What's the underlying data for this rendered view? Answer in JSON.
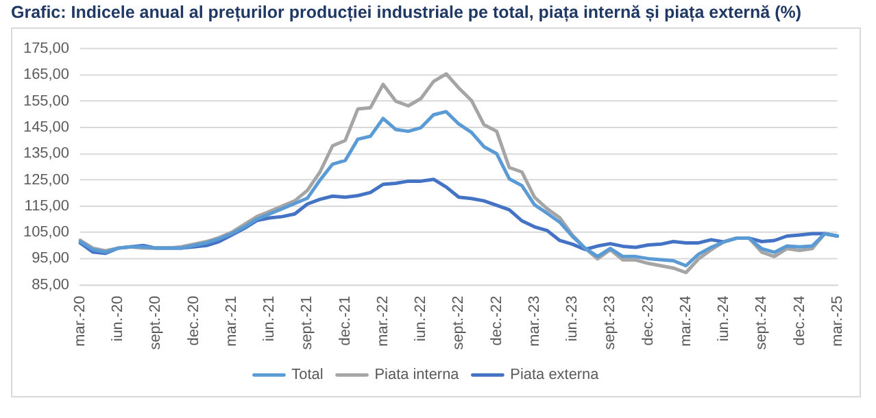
{
  "chart_data": {
    "type": "line",
    "title": "Grafic: Indicele anual al prețurilor producției industriale pe total, piața internă și piața externă (%)",
    "categories": [
      "mar.-20",
      null,
      null,
      "iun.-20",
      null,
      null,
      "sept.-20",
      null,
      null,
      "dec.-20",
      null,
      null,
      "mar.-21",
      null,
      null,
      "iun.-21",
      null,
      null,
      "sept.-21",
      null,
      null,
      "dec.-21",
      null,
      null,
      "mar.-22",
      null,
      null,
      "iun.-22",
      null,
      null,
      "sept.-22",
      null,
      null,
      "dec.-22",
      null,
      null,
      "mar.-23",
      null,
      null,
      "iun.-23",
      null,
      null,
      "sept.-23",
      null,
      null,
      "dec.-23",
      null,
      null,
      "mar.-24",
      null,
      null,
      "iun.-24",
      null,
      null,
      "sept.-24",
      null,
      null,
      "dec.-24",
      null,
      null,
      "mar.-25"
    ],
    "series": [
      {
        "name": "Total",
        "color": "#5b9bd5",
        "values": [
          101.5,
          98.5,
          97.5,
          99,
          99.5,
          99.5,
          99,
          99,
          99,
          100,
          101,
          102.5,
          104.5,
          107,
          110,
          112,
          114,
          116,
          118,
          124.9,
          131,
          132.4,
          140.5,
          141.6,
          148.4,
          144.2,
          143.5,
          144.9,
          149.8,
          151,
          146.3,
          143.1,
          137.6,
          135,
          125.4,
          122.8,
          115.5,
          112.3,
          108.9,
          103.5,
          99,
          95.8,
          98.9,
          95.8,
          95.8,
          95,
          94.6,
          94.2,
          92.3,
          96.7,
          99.3,
          101.4,
          102.8,
          102.8,
          98.8,
          97.4,
          99.8,
          99.5,
          99.8,
          104.5,
          103.6
        ]
      },
      {
        "name": "Piata interna",
        "color": "#a5a5a5",
        "values": [
          102,
          99,
          98,
          99,
          99.5,
          99,
          99,
          99,
          99.5,
          100.5,
          101.5,
          103,
          105,
          108,
          111,
          113,
          115,
          117,
          121,
          128,
          138,
          140,
          152,
          152.5,
          161.4,
          155,
          153.2,
          156,
          162.5,
          165.4,
          160,
          155.3,
          146,
          143.5,
          129.7,
          128,
          118.4,
          114,
          110.6,
          104,
          99,
          94.9,
          98.4,
          94.5,
          94.5,
          93.2,
          92.3,
          91.4,
          89.7,
          94.9,
          98.4,
          101.4,
          102.8,
          102.8,
          97.5,
          95.8,
          98.8,
          98.1,
          98.8,
          104.5,
          103.6
        ]
      },
      {
        "name": "Piata externa",
        "color": "#4472c4",
        "values": [
          101,
          97.5,
          97,
          99,
          99.5,
          100,
          99,
          99,
          99,
          99.5,
          100,
          101.5,
          104,
          106.5,
          109.5,
          110.5,
          111,
          112,
          115.8,
          117.6,
          118.8,
          118.4,
          119,
          120.2,
          123.3,
          123.7,
          124.5,
          124.5,
          125.2,
          122.3,
          118.4,
          117.9,
          117,
          115.3,
          113.6,
          109.4,
          107.1,
          105.7,
          101.9,
          100.5,
          98.5,
          99.8,
          100.7,
          99.7,
          99.3,
          100.2,
          100.5,
          101.5,
          101,
          101,
          102.2,
          101.4,
          102.8,
          102.8,
          101.5,
          101.9,
          103.6,
          104,
          104.5,
          104.5,
          103.6
        ]
      }
    ],
    "ylim": [
      85,
      175
    ],
    "yticks": [
      {
        "value": 85,
        "label": "85,00"
      },
      {
        "value": 95,
        "label": "95,00"
      },
      {
        "value": 105,
        "label": "105,00"
      },
      {
        "value": 115,
        "label": "115,00"
      },
      {
        "value": 125,
        "label": "125,00"
      },
      {
        "value": 135,
        "label": "135,00"
      },
      {
        "value": 145,
        "label": "145,00"
      },
      {
        "value": 155,
        "label": "155,00"
      },
      {
        "value": 165,
        "label": "165,00"
      },
      {
        "value": 175,
        "label": "175,00"
      }
    ],
    "grid": "y",
    "legend": "bottom",
    "marker": "none",
    "line_style": "solid"
  }
}
